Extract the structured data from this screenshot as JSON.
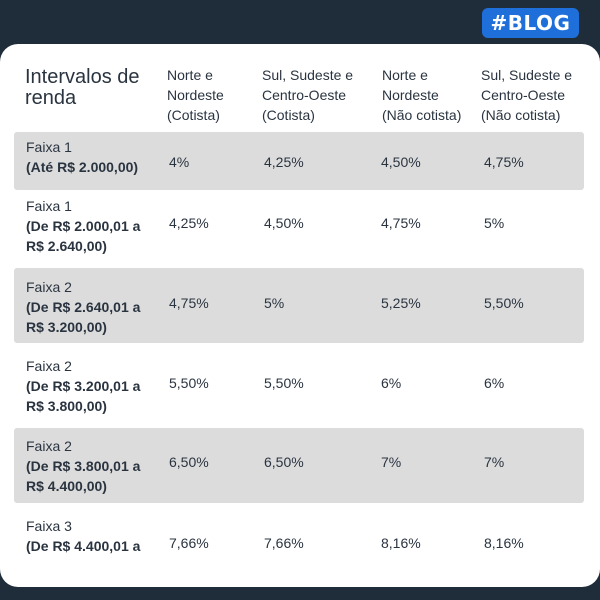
{
  "badge": "#BLOG",
  "table": {
    "header": {
      "title": "Intervalos de renda",
      "columns": [
        [
          "Norte e",
          "Nordeste",
          "(Cotista)"
        ],
        [
          "Sul, Sudeste e",
          "Centro-Oeste",
          "(Cotista)"
        ],
        [
          "Norte e",
          "Nordeste",
          "(Não cotista)"
        ],
        [
          "Sul, Sudeste e",
          "Centro-Oeste",
          "(Não cotista)"
        ]
      ]
    },
    "rows": [
      {
        "faixa": "Faixa 1",
        "range": [
          "(Até R$ 2.000,00)"
        ],
        "values": [
          "4%",
          "4,25%",
          "4,50%",
          "4,75%"
        ]
      },
      {
        "faixa": "Faixa 1",
        "range": [
          "(De R$ 2.000,01 a",
          "R$ 2.640,00)"
        ],
        "values": [
          "4,25%",
          "4,50%",
          "4,75%",
          "5%"
        ]
      },
      {
        "faixa": "Faixa 2",
        "range": [
          "(De R$ 2.640,01 a",
          "R$ 3.200,00)"
        ],
        "values": [
          "4,75%",
          "5%",
          "5,25%",
          "5,50%"
        ]
      },
      {
        "faixa": "Faixa 2",
        "range": [
          "(De R$ 3.200,01 a",
          "R$ 3.800,00)"
        ],
        "values": [
          "5,50%",
          "5,50%",
          "6%",
          "6%"
        ]
      },
      {
        "faixa": "Faixa 2",
        "range": [
          "(De R$ 3.800,01 a",
          "R$ 4.400,00)"
        ],
        "values": [
          "6,50%",
          "6,50%",
          "7%",
          "7%"
        ]
      },
      {
        "faixa": "Faixa 3",
        "range": [
          "(De R$ 4.400,01 a"
        ],
        "values": [
          "7,66%",
          "7,66%",
          "8,16%",
          "8,16%"
        ]
      }
    ]
  }
}
